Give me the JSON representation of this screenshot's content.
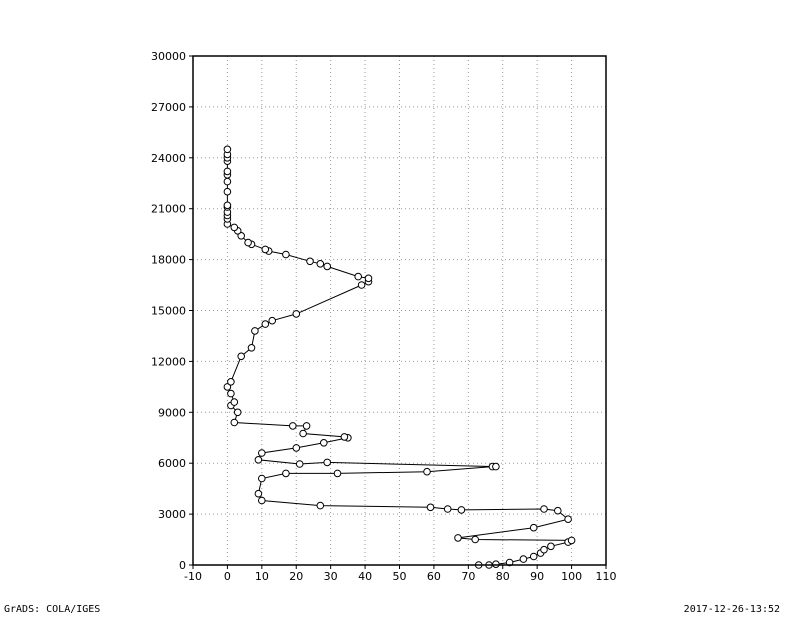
{
  "footer": {
    "left": "GrADS: COLA/IGES",
    "right": "2017-12-26-13:52"
  },
  "chart_data": {
    "type": "line",
    "title": "",
    "xlabel": "",
    "ylabel": "",
    "xlim": [
      -10,
      110
    ],
    "ylim": [
      0,
      30000
    ],
    "x_ticks": [
      -10,
      0,
      10,
      20,
      30,
      40,
      50,
      60,
      70,
      80,
      90,
      100,
      110
    ],
    "y_ticks": [
      0,
      3000,
      6000,
      9000,
      12000,
      15000,
      18000,
      21000,
      24000,
      27000,
      30000
    ],
    "grid": true,
    "line_color": "#000000",
    "marker": "open-circle",
    "series": [
      {
        "points": [
          [
            73,
            0
          ],
          [
            76,
            0
          ],
          [
            78,
            50
          ],
          [
            82,
            150
          ],
          [
            86,
            350
          ],
          [
            89,
            500
          ],
          [
            91,
            700
          ],
          [
            92,
            900
          ],
          [
            94,
            1100
          ],
          [
            99,
            1350
          ],
          [
            100,
            1450
          ],
          [
            72,
            1500
          ],
          [
            67,
            1600
          ],
          [
            89,
            2200
          ],
          [
            99,
            2700
          ],
          [
            96,
            3200
          ],
          [
            92,
            3300
          ],
          [
            68,
            3250
          ],
          [
            64,
            3300
          ],
          [
            59,
            3400
          ],
          [
            27,
            3500
          ],
          [
            10,
            3800
          ],
          [
            9,
            4200
          ],
          [
            10,
            5100
          ],
          [
            17,
            5400
          ],
          [
            32,
            5400
          ],
          [
            58,
            5500
          ],
          [
            77,
            5800
          ],
          [
            78,
            5800
          ],
          [
            29,
            6050
          ],
          [
            21,
            5950
          ],
          [
            9,
            6200
          ],
          [
            10,
            6600
          ],
          [
            20,
            6900
          ],
          [
            28,
            7200
          ],
          [
            35,
            7500
          ],
          [
            34,
            7550
          ],
          [
            22,
            7750
          ],
          [
            23,
            8200
          ],
          [
            19,
            8200
          ],
          [
            2,
            8400
          ],
          [
            3,
            9000
          ],
          [
            1,
            9400
          ],
          [
            2,
            9600
          ],
          [
            1,
            10100
          ],
          [
            0,
            10500
          ],
          [
            1,
            10800
          ],
          [
            4,
            12300
          ],
          [
            7,
            12800
          ],
          [
            8,
            13800
          ],
          [
            11,
            14200
          ],
          [
            13,
            14400
          ],
          [
            20,
            14800
          ],
          [
            39,
            16500
          ],
          [
            41,
            16700
          ],
          [
            41,
            16900
          ],
          [
            38,
            17000
          ],
          [
            29,
            17600
          ],
          [
            27,
            17750
          ],
          [
            24,
            17900
          ],
          [
            17,
            18300
          ],
          [
            12,
            18500
          ],
          [
            11,
            18600
          ],
          [
            7,
            18900
          ],
          [
            6,
            19000
          ],
          [
            4,
            19400
          ],
          [
            3,
            19700
          ],
          [
            2,
            19900
          ],
          [
            0,
            20100
          ],
          [
            0,
            20400
          ],
          [
            0,
            20600
          ],
          [
            0,
            20800
          ],
          [
            0,
            21100
          ],
          [
            0,
            21200
          ],
          [
            0,
            22000
          ],
          [
            0,
            22600
          ],
          [
            0,
            23000
          ],
          [
            0,
            23200
          ],
          [
            0,
            23800
          ],
          [
            0,
            24000
          ],
          [
            0,
            24200
          ],
          [
            0,
            24500
          ]
        ]
      }
    ]
  }
}
